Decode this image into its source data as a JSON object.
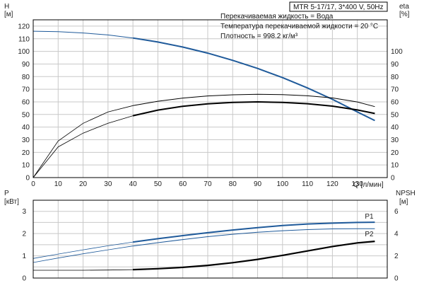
{
  "model_label": "MTR 5-17/17, 3*400 V, 50Hz",
  "info_lines": [
    "Перекачиваемая жидкость = Вода",
    "Температура перекачиваемой жидкости = 20 °C",
    "Плотность = 998.2 кг/м³"
  ],
  "chart_data": [
    {
      "type": "line",
      "name": "top",
      "ylabel": "H",
      "yunit": "[м]",
      "y2label": "eta",
      "y2unit": "[%]",
      "xlabel": "Q [л/мин]",
      "xlim": [
        0,
        142
      ],
      "ylim": [
        0,
        125
      ],
      "y2lim": [
        0,
        125
      ],
      "xticks": [
        0,
        10,
        20,
        30,
        40,
        50,
        60,
        70,
        80,
        90,
        100,
        110,
        120,
        130
      ],
      "yticks": [
        0,
        10,
        20,
        30,
        40,
        50,
        60,
        70,
        80,
        90,
        100,
        110,
        120
      ],
      "y2ticks": [
        0,
        10,
        20,
        30,
        40,
        50,
        60,
        70,
        80,
        90,
        100
      ],
      "grid": true,
      "series": [
        {
          "axis": "left",
          "color": "#1f5a9a",
          "x": [
            0,
            10,
            20,
            30,
            40,
            50,
            60,
            70,
            80,
            90,
            100,
            110,
            120,
            130,
            137
          ],
          "y": [
            116,
            115.6,
            114.6,
            113,
            110.6,
            107.4,
            103.4,
            98.6,
            92.9,
            86.5,
            79.2,
            71.0,
            62.0,
            52.0,
            45.2
          ]
        },
        {
          "axis": "right",
          "color": "#000000",
          "x": [
            0,
            10,
            20,
            30,
            40,
            50,
            60,
            70,
            80,
            90,
            100,
            110,
            120,
            130,
            137
          ],
          "y": [
            0,
            24.3,
            35.2,
            43.0,
            49.0,
            53.5,
            56.5,
            58.4,
            59.6,
            60.0,
            59.6,
            58.5,
            56.6,
            53.6,
            50.8
          ]
        },
        {
          "axis": "right",
          "color": "#000000",
          "x": [
            0,
            10,
            20,
            30,
            40,
            50,
            60,
            70,
            80,
            90,
            100,
            110,
            120,
            130,
            137
          ],
          "y": [
            0,
            29,
            43,
            52,
            57,
            60.5,
            63,
            64.7,
            65.6,
            66.0,
            65.7,
            64.8,
            63.1,
            59.9,
            56.2
          ]
        }
      ]
    },
    {
      "type": "line",
      "name": "bottom",
      "ylabel": "P",
      "yunit": "[кВт]",
      "y2label": "NPSH",
      "y2unit": "[м]",
      "xlim": [
        0,
        142
      ],
      "ylim": [
        0,
        3.5
      ],
      "y2lim": [
        0,
        7
      ],
      "yticks": [
        0,
        1,
        2,
        3
      ],
      "y2ticks": [
        0,
        2,
        4,
        6
      ],
      "grid": true,
      "series": [
        {
          "name": "P1",
          "axis": "left",
          "color": "#1f5a9a",
          "x": [
            0,
            10,
            20,
            30,
            40,
            50,
            60,
            70,
            80,
            90,
            100,
            110,
            120,
            130,
            137
          ],
          "y": [
            0.88,
            1.08,
            1.27,
            1.45,
            1.62,
            1.77,
            1.91,
            2.04,
            2.16,
            2.27,
            2.36,
            2.43,
            2.47,
            2.5,
            2.51
          ]
        },
        {
          "name": "P2",
          "axis": "left",
          "color": "#1f5a9a",
          "x": [
            0,
            10,
            20,
            30,
            40,
            50,
            60,
            70,
            80,
            90,
            100,
            110,
            120,
            130,
            137
          ],
          "y": [
            0.7,
            0.9,
            1.09,
            1.27,
            1.44,
            1.59,
            1.73,
            1.86,
            1.97,
            2.06,
            2.13,
            2.18,
            2.21,
            2.22,
            2.22
          ]
        },
        {
          "axis": "right",
          "color": "#000000",
          "x": [
            0,
            10,
            20,
            30,
            40,
            50,
            60,
            70,
            80,
            90,
            100,
            110,
            120,
            130,
            137
          ],
          "y": [
            0.7,
            0.7,
            0.7,
            0.72,
            0.76,
            0.84,
            0.96,
            1.14,
            1.38,
            1.68,
            2.04,
            2.44,
            2.84,
            3.16,
            3.3
          ]
        }
      ]
    }
  ]
}
